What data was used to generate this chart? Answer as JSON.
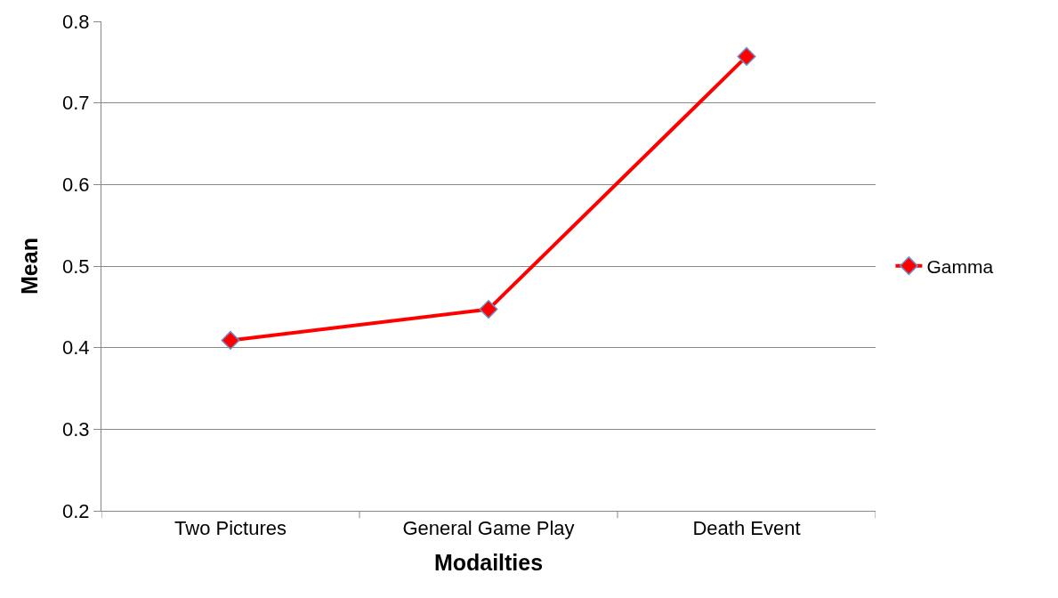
{
  "chart_data": {
    "type": "line",
    "xlabel": "Modailties",
    "ylabel": "Mean",
    "categories": [
      "Two Pictures",
      "General Game Play",
      "Death Event"
    ],
    "series": [
      {
        "name": "Gamma",
        "color": "#ff0000",
        "values": [
          0.409,
          0.447,
          0.757
        ]
      }
    ],
    "ylim": [
      0.2,
      0.8
    ],
    "yticks": [
      0.2,
      0.3,
      0.4,
      0.5,
      0.6,
      0.7,
      0.8
    ],
    "grid": "y",
    "legend": "right",
    "marker": "diamond",
    "line_style": "solid"
  }
}
